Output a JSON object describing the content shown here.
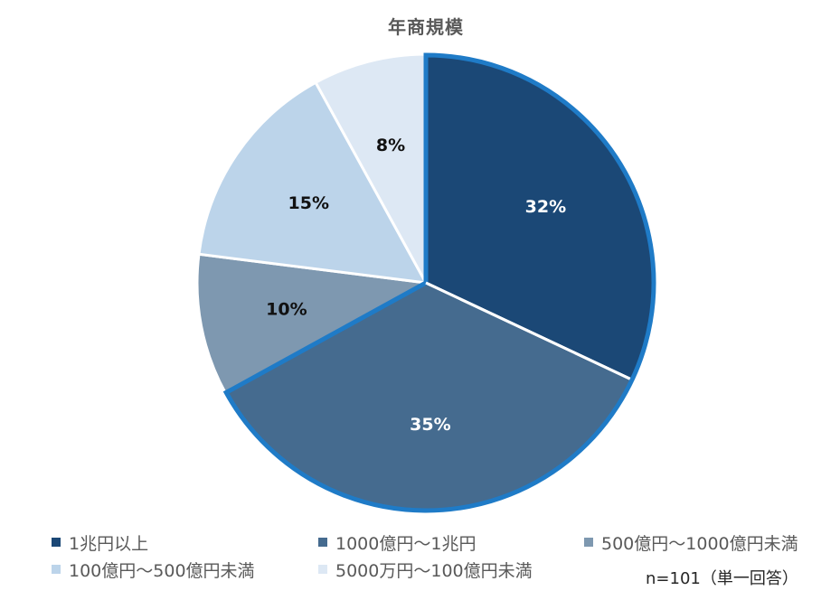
{
  "chart_data": {
    "type": "pie",
    "title": "年商規模",
    "categories": [
      "1兆円以上",
      "1000億円～1兆円",
      "500億円～1000億円未満",
      "100億円～500億円未満",
      "5000万円～100億円未満"
    ],
    "values": [
      32,
      35,
      10,
      15,
      8
    ],
    "labels": [
      "32%",
      "35%",
      "10%",
      "15%",
      "8%"
    ],
    "colors": [
      "#1b4876",
      "#456b8f",
      "#7e98b0",
      "#bcd4ea",
      "#dde8f4"
    ],
    "label_colors": [
      "#ffffff",
      "#ffffff",
      "#111111",
      "#111111",
      "#111111"
    ],
    "highlight": {
      "slices": [
        0,
        1
      ],
      "outline_color": "#1f7bc7"
    },
    "start_angle_deg": 0,
    "direction": "clockwise",
    "legend_position": "bottom",
    "note": "n=101（単一回答）"
  },
  "title": "年商規模",
  "legend": [
    {
      "label": "1兆円以上",
      "color": "#1b4876"
    },
    {
      "label": "1000億円～1兆円",
      "color": "#456b8f"
    },
    {
      "label": "500億円～1000億円未満",
      "color": "#7e98b0"
    },
    {
      "label": "100億円～500億円未満",
      "color": "#bcd4ea"
    },
    {
      "label": "5000万円～100億円未満",
      "color": "#dde8f4"
    }
  ],
  "note": "n=101（単一回答）"
}
